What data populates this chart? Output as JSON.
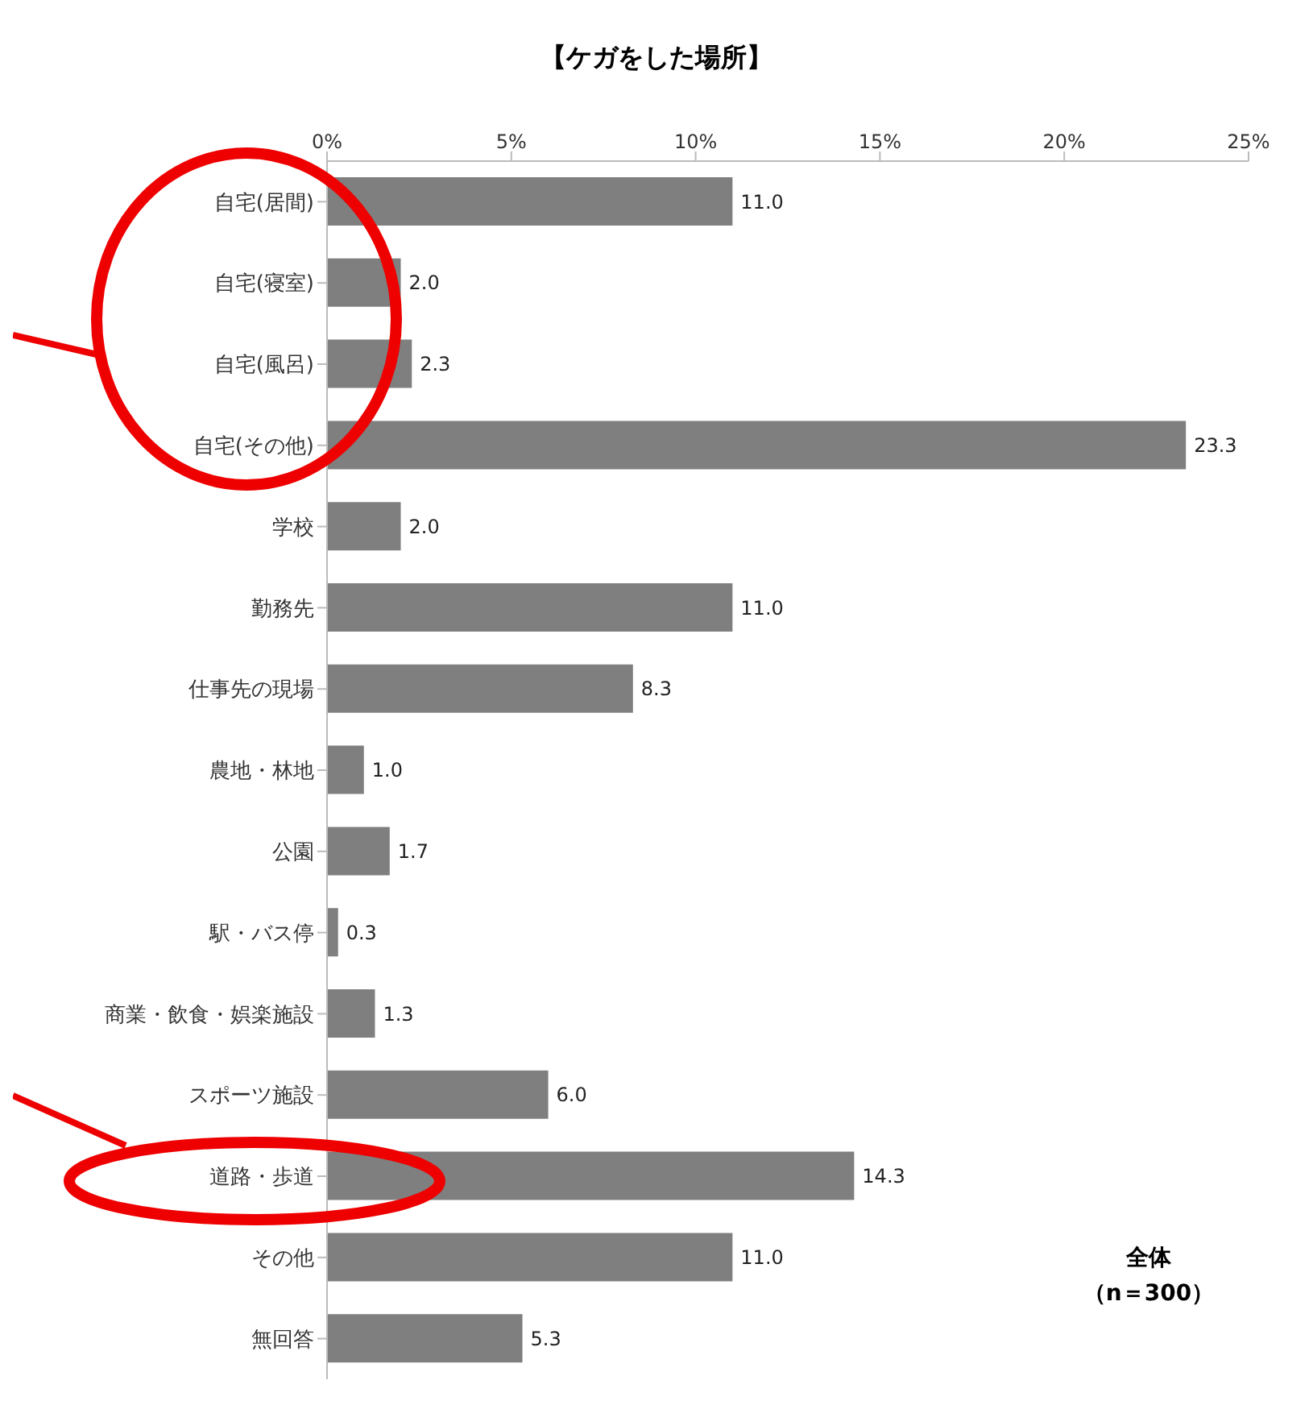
{
  "chart_data": {
    "type": "bar",
    "orientation": "horizontal",
    "title": "【ケガをした場所】",
    "categories": [
      "自宅(居間)",
      "自宅(寝室)",
      "自宅(風呂)",
      "自宅(その他)",
      "学校",
      "勤務先",
      "仕事先の現場",
      "農地・林地",
      "公園",
      "駅・バス停",
      "商業・飲食・娯楽施設",
      "スポーツ施設",
      "道路・歩道",
      "その他",
      "無回答"
    ],
    "values": [
      11.0,
      2.0,
      2.3,
      23.3,
      2.0,
      11.0,
      8.3,
      1.0,
      1.7,
      0.3,
      1.3,
      6.0,
      14.3,
      11.0,
      5.3
    ],
    "value_labels": [
      "11.0",
      "2.0",
      "2.3",
      "23.3",
      "2.0",
      "11.0",
      "8.3",
      "1.0",
      "1.7",
      "0.3",
      "1.3",
      "6.0",
      "14.3",
      "11.0",
      "5.3"
    ],
    "color": "#7f7f7f",
    "xlim": [
      0,
      25
    ],
    "xticks": [
      {
        "value": 0,
        "label": "0%"
      },
      {
        "value": 5,
        "label": "5%"
      },
      {
        "value": 10,
        "label": "10%"
      },
      {
        "value": 15,
        "label": "15%"
      },
      {
        "value": 20,
        "label": "20%"
      },
      {
        "value": 25,
        "label": "25%"
      }
    ],
    "grid": false,
    "legend": false,
    "annotations": [
      "全体",
      "（n＝300）"
    ]
  }
}
